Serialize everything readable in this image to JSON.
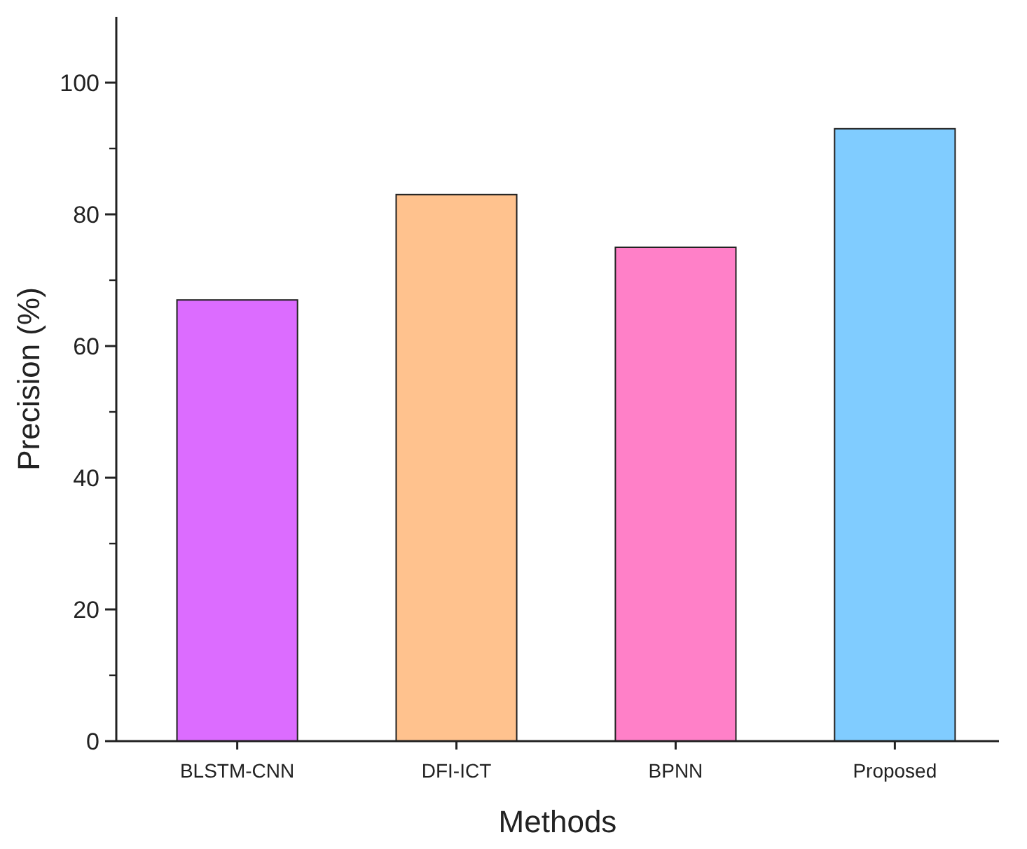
{
  "chart_data": {
    "type": "bar",
    "xlabel": "Methods",
    "ylabel": "Precision (%)",
    "categories": [
      "BLSTM-CNN",
      "DFI-ICT",
      "BPNN",
      "Proposed"
    ],
    "values": [
      67,
      83,
      75,
      93
    ],
    "colors": [
      "#dc6cff",
      "#ffc28e",
      "#ff80c8",
      "#80ccff"
    ],
    "ylim": [
      0,
      110
    ],
    "yticks": [
      0,
      20,
      40,
      60,
      80,
      100
    ],
    "grid": false
  }
}
